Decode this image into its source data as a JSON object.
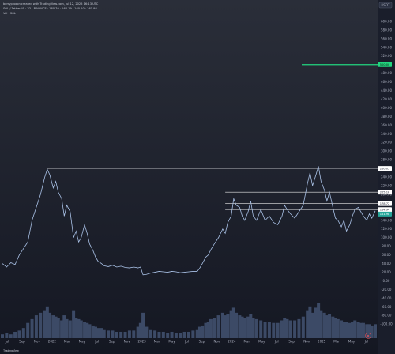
{
  "header": {
    "attribution": "berryproxon created with TradingView.com, Jul 12, 2025 16:13 UTC",
    "symbol_line": "SOL / TetherUS · 1D · BINANCE · 160.70 · 164.19 · 160.20 · 161.98",
    "volume_line": "Vol · SOL"
  },
  "currency": "USDT",
  "footer": {
    "brand": "TradingView"
  },
  "colors": {
    "background_top": "#2a2e39",
    "background_bottom": "#141722",
    "price_line": "#a9c1e6",
    "level_line": "#e8e8e8",
    "target_line": "#22d67f",
    "target_label_bg": "#22d67f",
    "level_label_bg": "#ffffff",
    "volume": "#3c4a66"
  },
  "chart_data": {
    "type": "line",
    "x_ticks": [
      "Jul",
      "Sep",
      "Nov",
      "2022",
      "Mar",
      "May",
      "Jul",
      "Sep",
      "Nov",
      "2023",
      "Mar",
      "May",
      "Jul",
      "Sep",
      "Nov",
      "2024",
      "Mar",
      "May",
      "Jul",
      "Sep",
      "Nov",
      "2025",
      "Mar",
      "May",
      "Jul"
    ],
    "y_ticks": [
      600,
      580,
      560,
      540,
      520,
      500,
      480,
      460,
      440,
      420,
      400,
      380,
      360,
      340,
      320,
      300,
      280,
      260,
      240,
      220,
      200,
      180,
      160,
      140,
      120,
      100,
      80,
      60,
      40,
      20,
      0,
      -20,
      -40,
      -60,
      -80,
      -100
    ],
    "ylim": [
      -100,
      620
    ],
    "series": [
      {
        "type": "line",
        "values": [
          [
            0,
            40
          ],
          [
            0.5,
            32
          ],
          [
            1,
            42
          ],
          [
            1.5,
            38
          ],
          [
            2,
            60
          ],
          [
            2.5,
            75
          ],
          [
            3,
            90
          ],
          [
            3.5,
            140
          ],
          [
            4,
            170
          ],
          [
            4.5,
            200
          ],
          [
            5,
            240
          ],
          [
            5.3,
            258
          ],
          [
            5.6,
            245
          ],
          [
            6,
            215
          ],
          [
            6.3,
            230
          ],
          [
            6.6,
            205
          ],
          [
            7,
            190
          ],
          [
            7.3,
            150
          ],
          [
            7.6,
            175
          ],
          [
            8,
            160
          ],
          [
            8.4,
            100
          ],
          [
            8.7,
            115
          ],
          [
            9,
            90
          ],
          [
            9.3,
            100
          ],
          [
            9.7,
            130
          ],
          [
            10,
            110
          ],
          [
            10.3,
            85
          ],
          [
            10.7,
            70
          ],
          [
            11,
            55
          ],
          [
            11.3,
            45
          ],
          [
            11.7,
            40
          ],
          [
            12,
            35
          ],
          [
            12.5,
            33
          ],
          [
            13,
            36
          ],
          [
            13.5,
            32
          ],
          [
            14,
            34
          ],
          [
            14.5,
            31
          ],
          [
            15,
            30
          ],
          [
            15.5,
            32
          ],
          [
            16,
            30
          ],
          [
            16.3,
            32
          ],
          [
            16.6,
            14
          ],
          [
            17,
            15
          ],
          [
            17.5,
            18
          ],
          [
            18,
            20
          ],
          [
            18.5,
            22
          ],
          [
            19,
            21
          ],
          [
            19.5,
            20
          ],
          [
            20,
            22
          ],
          [
            20.5,
            21
          ],
          [
            21,
            19
          ],
          [
            21.5,
            20
          ],
          [
            22,
            21
          ],
          [
            22.5,
            22
          ],
          [
            23,
            22
          ],
          [
            23.3,
            30
          ],
          [
            23.6,
            40
          ],
          [
            24,
            55
          ],
          [
            24.3,
            60
          ],
          [
            24.6,
            72
          ],
          [
            25,
            85
          ],
          [
            25.5,
            100
          ],
          [
            26,
            120
          ],
          [
            26.3,
            110
          ],
          [
            26.6,
            135
          ],
          [
            27,
            150
          ],
          [
            27.3,
            190
          ],
          [
            27.6,
            175
          ],
          [
            28,
            170
          ],
          [
            28.3,
            150
          ],
          [
            28.6,
            140
          ],
          [
            29,
            160
          ],
          [
            29.3,
            185
          ],
          [
            29.6,
            150
          ],
          [
            30,
            140
          ],
          [
            30.5,
            165
          ],
          [
            31,
            140
          ],
          [
            31.5,
            150
          ],
          [
            32,
            135
          ],
          [
            32.5,
            130
          ],
          [
            33,
            150
          ],
          [
            33.3,
            175
          ],
          [
            33.6,
            165
          ],
          [
            34,
            155
          ],
          [
            34.5,
            145
          ],
          [
            35,
            160
          ],
          [
            35.5,
            175
          ],
          [
            36,
            225
          ],
          [
            36.3,
            250
          ],
          [
            36.6,
            220
          ],
          [
            37,
            245
          ],
          [
            37.3,
            265
          ],
          [
            37.6,
            230
          ],
          [
            38,
            210
          ],
          [
            38.3,
            185
          ],
          [
            38.6,
            205
          ],
          [
            39,
            170
          ],
          [
            39.3,
            145
          ],
          [
            39.6,
            140
          ],
          [
            40,
            125
          ],
          [
            40.3,
            140
          ],
          [
            40.6,
            115
          ],
          [
            41,
            130
          ],
          [
            41.3,
            150
          ],
          [
            41.6,
            165
          ],
          [
            42,
            170
          ],
          [
            42.3,
            160
          ],
          [
            42.6,
            150
          ],
          [
            43,
            140
          ],
          [
            43.3,
            155
          ],
          [
            43.6,
            145
          ],
          [
            44,
            162
          ]
        ]
      },
      {
        "type": "bar",
        "values": [
          [
            0,
            3
          ],
          [
            0.5,
            4
          ],
          [
            1,
            3
          ],
          [
            1.5,
            5
          ],
          [
            2,
            6
          ],
          [
            2.5,
            8
          ],
          [
            3,
            12
          ],
          [
            3.5,
            15
          ],
          [
            4,
            18
          ],
          [
            4.5,
            20
          ],
          [
            5,
            22
          ],
          [
            5.3,
            25
          ],
          [
            5.6,
            20
          ],
          [
            6,
            18
          ],
          [
            6.3,
            17
          ],
          [
            6.6,
            16
          ],
          [
            7,
            14
          ],
          [
            7.3,
            18
          ],
          [
            7.6,
            15
          ],
          [
            8,
            14
          ],
          [
            8.4,
            22
          ],
          [
            8.7,
            16
          ],
          [
            9,
            15
          ],
          [
            9.3,
            14
          ],
          [
            9.7,
            13
          ],
          [
            10,
            12
          ],
          [
            10.3,
            11
          ],
          [
            10.7,
            10
          ],
          [
            11,
            9
          ],
          [
            11.3,
            8
          ],
          [
            11.7,
            8
          ],
          [
            12,
            7
          ],
          [
            12.5,
            6
          ],
          [
            13,
            6
          ],
          [
            13.5,
            5
          ],
          [
            14,
            5
          ],
          [
            14.5,
            5
          ],
          [
            15,
            6
          ],
          [
            15.5,
            6
          ],
          [
            16,
            9
          ],
          [
            16.3,
            12
          ],
          [
            16.6,
            20
          ],
          [
            17,
            9
          ],
          [
            17.5,
            7
          ],
          [
            18,
            6
          ],
          [
            18.5,
            5
          ],
          [
            19,
            5
          ],
          [
            19.5,
            4
          ],
          [
            20,
            5
          ],
          [
            20.5,
            4
          ],
          [
            21,
            4
          ],
          [
            21.5,
            5
          ],
          [
            22,
            5
          ],
          [
            22.5,
            6
          ],
          [
            23,
            7
          ],
          [
            23.3,
            9
          ],
          [
            23.6,
            10
          ],
          [
            24,
            12
          ],
          [
            24.3,
            13
          ],
          [
            24.6,
            15
          ],
          [
            25,
            16
          ],
          [
            25.5,
            18
          ],
          [
            26,
            20
          ],
          [
            26.3,
            18
          ],
          [
            26.6,
            19
          ],
          [
            27,
            22
          ],
          [
            27.3,
            24
          ],
          [
            27.6,
            20
          ],
          [
            28,
            18
          ],
          [
            28.3,
            17
          ],
          [
            28.6,
            16
          ],
          [
            29,
            17
          ],
          [
            29.3,
            19
          ],
          [
            29.6,
            16
          ],
          [
            30,
            15
          ],
          [
            30.5,
            14
          ],
          [
            31,
            13
          ],
          [
            31.5,
            13
          ],
          [
            32,
            12
          ],
          [
            32.5,
            12
          ],
          [
            33,
            14
          ],
          [
            33.3,
            16
          ],
          [
            33.6,
            15
          ],
          [
            34,
            14
          ],
          [
            34.5,
            14
          ],
          [
            35,
            15
          ],
          [
            35.5,
            17
          ],
          [
            36,
            22
          ],
          [
            36.3,
            25
          ],
          [
            36.6,
            20
          ],
          [
            37,
            24
          ],
          [
            37.3,
            28
          ],
          [
            37.6,
            22
          ],
          [
            38,
            20
          ],
          [
            38.3,
            18
          ],
          [
            38.6,
            19
          ],
          [
            39,
            17
          ],
          [
            39.3,
            16
          ],
          [
            39.6,
            15
          ],
          [
            40,
            14
          ],
          [
            40.3,
            13
          ],
          [
            40.6,
            13
          ],
          [
            41,
            12
          ],
          [
            41.3,
            13
          ],
          [
            41.6,
            14
          ],
          [
            42,
            13
          ],
          [
            42.3,
            12
          ],
          [
            42.6,
            12
          ],
          [
            43,
            11
          ],
          [
            43.3,
            11
          ],
          [
            43.6,
            10
          ],
          [
            44,
            11
          ]
        ]
      }
    ],
    "levels": [
      {
        "label": "260.05",
        "value": 260.05
      },
      {
        "label": "205.16",
        "value": 205.16
      },
      {
        "label": "178.72",
        "value": 178.72
      },
      {
        "label": "164.94",
        "value": 164.94
      }
    ],
    "target": {
      "label": "500.00",
      "value": 500
    },
    "current_price": {
      "label": "161.98",
      "value": 161.98
    }
  }
}
